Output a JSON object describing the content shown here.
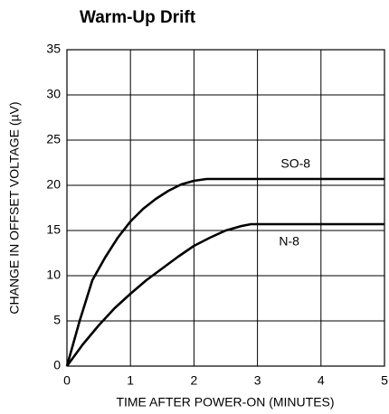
{
  "chart_data": {
    "type": "line",
    "title": "Warm-Up Drift",
    "x_label": "TIME AFTER POWER-ON (MINUTES)",
    "y_label": "CHANGE IN OFFSET VOLTAGE (µV)",
    "series": [
      {
        "name": "SO-8",
        "color": "#000000",
        "x": [
          0,
          0.2,
          0.4,
          0.6,
          0.8,
          1.0,
          1.2,
          1.4,
          1.6,
          1.8,
          2.0,
          2.2,
          5
        ],
        "values": [
          0,
          5,
          9.5,
          12,
          14.2,
          16,
          17.4,
          18.5,
          19.4,
          20.1,
          20.5,
          20.7,
          20.7
        ]
      },
      {
        "name": "N-8",
        "color": "#000000",
        "x": [
          0,
          0.25,
          0.5,
          0.75,
          1.0,
          1.25,
          1.5,
          1.75,
          2.0,
          2.25,
          2.5,
          2.75,
          2.9,
          5
        ],
        "values": [
          0,
          2.4,
          4.5,
          6.4,
          8,
          9.5,
          10.8,
          12.1,
          13.3,
          14.2,
          15,
          15.5,
          15.7,
          15.7
        ]
      }
    ],
    "xlim": [
      0,
      5
    ],
    "xticks": [
      0,
      1,
      2,
      3,
      4,
      5
    ],
    "ylim": [
      0,
      35
    ],
    "yticks": [
      0,
      5,
      10,
      15,
      20,
      25,
      30,
      35
    ],
    "grid": true
  }
}
